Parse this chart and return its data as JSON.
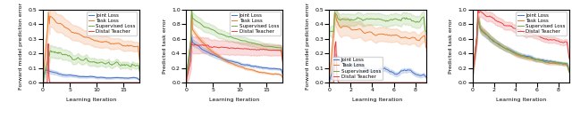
{
  "colors": {
    "joint": "#4472c4",
    "task": "#ed7d31",
    "supervised": "#70ad47",
    "distal": "#e84040"
  },
  "alpha_fill": 0.18,
  "walk_fwd_xlim": [
    0,
    18
  ],
  "walk_fwd_ylim": [
    0,
    0.5
  ],
  "walk_task_xlim": [
    0,
    18
  ],
  "walk_task_ylim": [
    0,
    1.0
  ],
  "jump_fwd_xlim": [
    0,
    9
  ],
  "jump_fwd_ylim": [
    0,
    0.5
  ],
  "jump_task_xlim": [
    0,
    9
  ],
  "jump_task_ylim": [
    0,
    1.0
  ],
  "xlabel": "Learning Iteration",
  "ylabel_fwd": "Forward model prediction error",
  "ylabel_task": "Predicted task error",
  "tick_fontsize": 4.5,
  "label_fontsize": 4.5,
  "legend_fontsize": 4.0,
  "lw": 0.7
}
